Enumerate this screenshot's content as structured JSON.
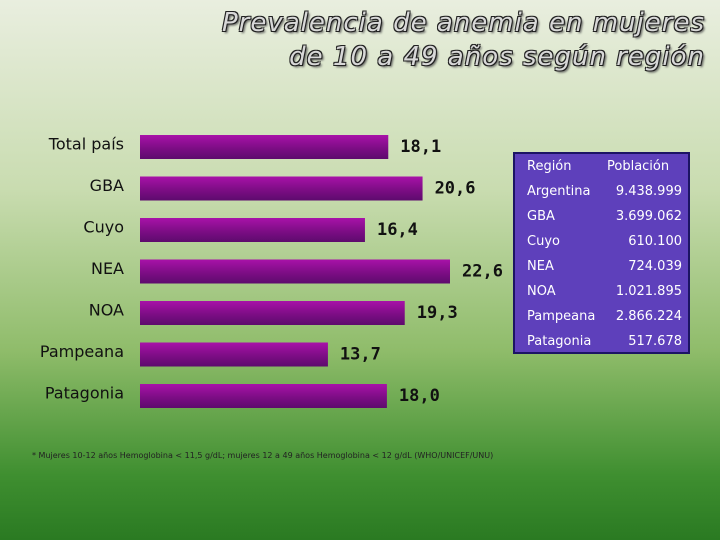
{
  "chart_data": {
    "type": "bar",
    "orientation": "horizontal",
    "title": "Prevalencia de anemia en mujeres de 10 a 49 años según región",
    "title_lines": [
      "Prevalencia de anemia en mujeres",
      "de 10 a 49 años según región"
    ],
    "categories": [
      "Total país",
      "GBA",
      "Cuyo",
      "NEA",
      "NOA",
      "Pampeana",
      "Patagonia"
    ],
    "values": [
      18.1,
      20.6,
      16.4,
      22.6,
      19.3,
      13.7,
      18.0
    ],
    "value_labels": [
      "18,1",
      "20,6",
      "16,4",
      "22,6",
      "19,3",
      "13,7",
      "18,0"
    ],
    "xlim": [
      0,
      22.6
    ],
    "colors": {
      "bar_highlight": "#8e0f8e",
      "bar_top": "#a812a8",
      "bar_bottom": "#5d0b6d",
      "table_bg": "#5e40bb"
    }
  },
  "population_table": {
    "headers": [
      "Región",
      "Población"
    ],
    "rows": [
      [
        "Argentina",
        "9.438.999"
      ],
      [
        "GBA",
        "3.699.062"
      ],
      [
        "Cuyo",
        "610.100"
      ],
      [
        "NEA",
        "724.039"
      ],
      [
        "NOA",
        "1.021.895"
      ],
      [
        "Pampeana",
        "2.866.224"
      ],
      [
        "Patagonia",
        "517.678"
      ]
    ]
  },
  "footnote": "* Mujeres 10-12 años Hemoglobina < 11,5 g/dL; mujeres 12 a 49 años Hemoglobina < 12 g/dL  (WHO/UNICEF/UNU)"
}
